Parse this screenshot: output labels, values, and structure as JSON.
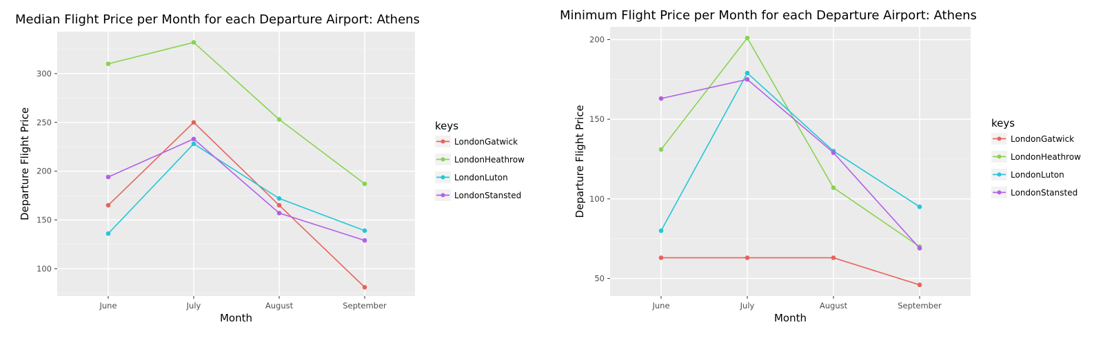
{
  "chart_data": [
    {
      "type": "line",
      "title": "Median Flight Price per Month for each Departure Airport: Athens",
      "xlabel": "Month",
      "ylabel": "Departure Flight Price",
      "categories": [
        "June",
        "July",
        "August",
        "September"
      ],
      "yticks": [
        100,
        150,
        200,
        250,
        300
      ],
      "ylim": [
        72,
        343
      ],
      "grid": true,
      "legend_title": "keys",
      "legend_placement": "right",
      "series": [
        {
          "name": "LondonGatwick",
          "color": "#e8625a",
          "values": [
            165,
            250,
            165,
            81
          ]
        },
        {
          "name": "LondonHeathrow",
          "color": "#85d44e",
          "values": [
            310,
            332,
            253,
            187
          ]
        },
        {
          "name": "LondonLuton",
          "color": "#21c7d9",
          "values": [
            136,
            228,
            172,
            139
          ]
        },
        {
          "name": "LondonStansted",
          "color": "#b25ee8",
          "values": [
            194,
            233,
            157,
            129
          ]
        }
      ]
    },
    {
      "type": "line",
      "title": "Minimum Flight Price per Month for each Departure Airport: Athens",
      "xlabel": "Month",
      "ylabel": "Departure Flight Price",
      "categories": [
        "June",
        "July",
        "August",
        "September"
      ],
      "yticks": [
        50,
        100,
        150,
        200
      ],
      "ylim": [
        39,
        208
      ],
      "grid": true,
      "legend_title": "keys",
      "legend_placement": "right",
      "series": [
        {
          "name": "LondonGatwick",
          "color": "#e8625a",
          "values": [
            63,
            63,
            63,
            46
          ]
        },
        {
          "name": "LondonHeathrow",
          "color": "#85d44e",
          "values": [
            131,
            201,
            107,
            70
          ]
        },
        {
          "name": "LondonLuton",
          "color": "#21c7d9",
          "values": [
            80,
            179,
            130,
            95
          ]
        },
        {
          "name": "LondonStansted",
          "color": "#b25ee8",
          "values": [
            163,
            175,
            129,
            69
          ]
        }
      ]
    }
  ]
}
